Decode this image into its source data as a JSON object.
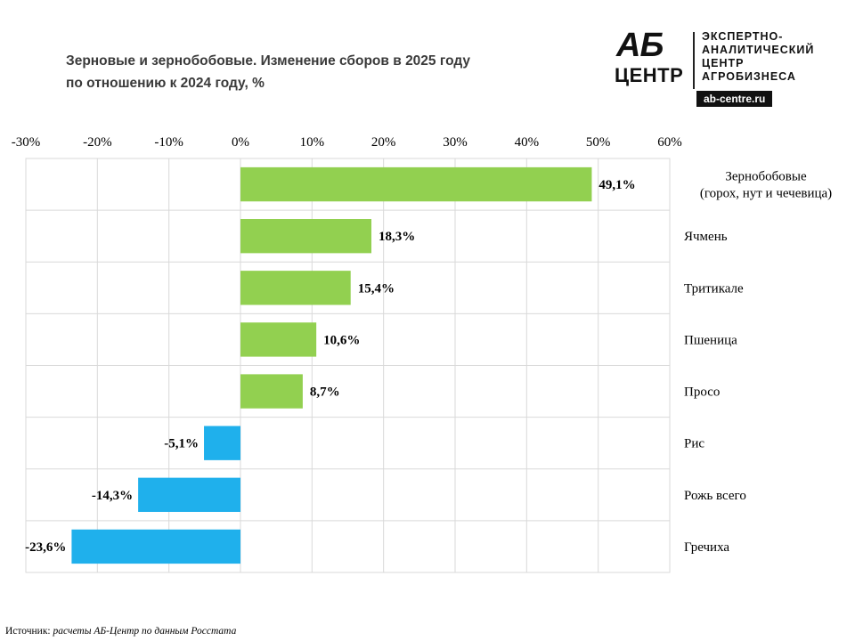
{
  "title_lines": [
    "Зерновые и зернобобовые. Изменение сборов в 2025 году",
    "по отношению к 2024 году, %"
  ],
  "logo": {
    "brand_top": "АБ",
    "brand_bottom": "ЦЕНТР",
    "tagline": [
      "ЭКСПЕРТНО-",
      "АНАЛИТИЧЕСКИЙ",
      "ЦЕНТР",
      "АГРОБИЗНЕСА"
    ],
    "site": "ab-centre.ru"
  },
  "footer": {
    "label": "Источник:",
    "text": "расчеты АБ-Центр по данным Росстата"
  },
  "chart_data": {
    "type": "bar",
    "orientation": "horizontal",
    "title": "Зерновые и зернобобовые. Изменение сборов в 2025 году по отношению к 2024 году, %",
    "xlim": [
      -30,
      60
    ],
    "ticks": [
      -30,
      -20,
      -10,
      0,
      10,
      20,
      30,
      40,
      50,
      60
    ],
    "tick_labels": [
      "-30%",
      "-20%",
      "-10%",
      "0%",
      "10%",
      "20%",
      "30%",
      "40%",
      "50%",
      "60%"
    ],
    "tick_position": "top",
    "grid": true,
    "categories": [
      [
        "Зернобобовые",
        "(горох, нут и чечевица)"
      ],
      [
        "Ячмень"
      ],
      [
        "Тритикале"
      ],
      [
        "Пшеница"
      ],
      [
        "Просо"
      ],
      [
        "Рис"
      ],
      [
        "Рожь всего"
      ],
      [
        "Гречиха"
      ]
    ],
    "values": [
      49.1,
      18.3,
      15.4,
      10.6,
      8.7,
      -5.1,
      -14.3,
      -23.6
    ],
    "value_labels": [
      "49,1%",
      "18,3%",
      "15,4%",
      "10,6%",
      "8,7%",
      "-5,1%",
      "-14,3%",
      "-23,6%"
    ],
    "colors": {
      "positive": "#92d050",
      "negative": "#1fb0ec",
      "grid": "#d9d9d9"
    }
  }
}
